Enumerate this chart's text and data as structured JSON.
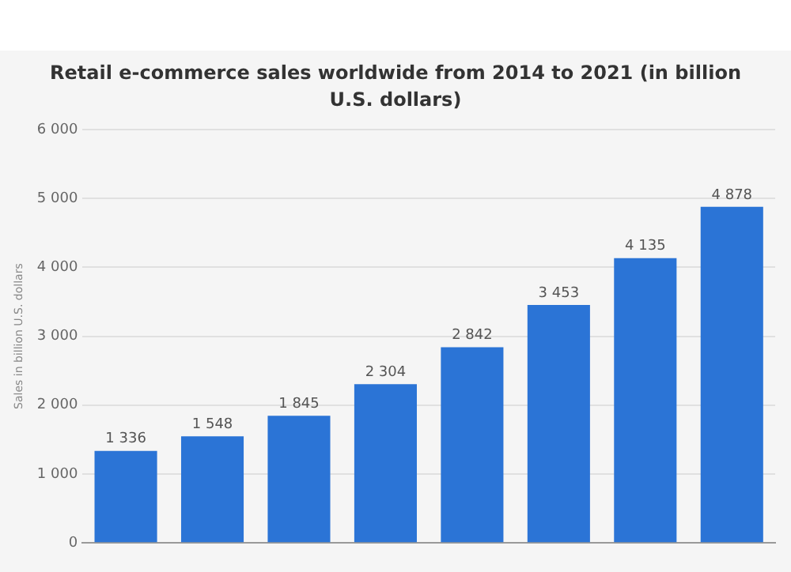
{
  "chart_data": {
    "type": "bar",
    "title": "Retail e-commerce sales worldwide from 2014 to 2021 (in billion U.S. dollars)",
    "ylabel": "Sales in billion U.S. dollars",
    "categories": [
      null,
      null,
      null,
      null,
      null,
      null,
      null,
      null
    ],
    "values": [
      1336,
      1548,
      1845,
      2304,
      2842,
      3453,
      4135,
      4878
    ],
    "value_labels": [
      "1 336",
      "1 548",
      "1 845",
      "2 304",
      "2 842",
      "3 453",
      "4 135",
      "4 878"
    ],
    "color": "#2b74d6",
    "ylim": [
      0,
      6000
    ],
    "yticks": [
      {
        "value": 0,
        "label": "0"
      },
      {
        "value": 1000,
        "label": "1 000"
      },
      {
        "value": 2000,
        "label": "2 000"
      },
      {
        "value": 3000,
        "label": "3 000"
      },
      {
        "value": 4000,
        "label": "4 000"
      },
      {
        "value": 5000,
        "label": "5 000"
      },
      {
        "value": 6000,
        "label": "6 000"
      }
    ],
    "grid": "y",
    "tick_labels": "y"
  }
}
